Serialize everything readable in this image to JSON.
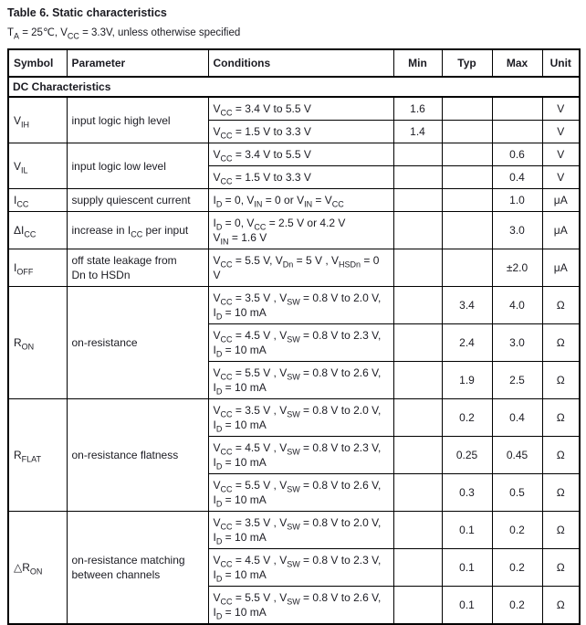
{
  "page": {
    "title": "Table 6. Static characteristics",
    "subtitle": "T~A~ = 25℃, V~CC~ = 3.3V, unless otherwise specified"
  },
  "table": {
    "headers": [
      "Symbol",
      "Parameter",
      "Conditions",
      "Min",
      "Typ",
      "Max",
      "Unit"
    ],
    "section_label": "DC Characteristics",
    "groups": [
      {
        "symbol": "V~IH~",
        "parameter": "input logic high level",
        "rows": [
          {
            "conditions": "V~CC~ = 3.4 V to 5.5 V",
            "min": "1.6",
            "typ": "",
            "max": "",
            "unit": "V"
          },
          {
            "conditions": "V~CC~ = 1.5 V to 3.3 V",
            "min": "1.4",
            "typ": "",
            "max": "",
            "unit": "V"
          }
        ]
      },
      {
        "symbol": "V~IL~",
        "parameter": "input logic low level",
        "rows": [
          {
            "conditions": "V~CC~ = 3.4 V to 5.5 V",
            "min": "",
            "typ": "",
            "max": "0.6",
            "unit": "V"
          },
          {
            "conditions": "V~CC~ = 1.5 V to 3.3 V",
            "min": "",
            "typ": "",
            "max": "0.4",
            "unit": "V"
          }
        ]
      },
      {
        "symbol": "I~CC~",
        "parameter": "supply quiescent current",
        "rows": [
          {
            "conditions": "I~D~ = 0, V~IN~ = 0 or V~IN~ = V~CC~",
            "min": "",
            "typ": "",
            "max": "1.0",
            "unit": "μA"
          }
        ]
      },
      {
        "symbol": "ΔI~CC~",
        "parameter": "increase in I~CC~ per input",
        "rows": [
          {
            "conditions": "I~D~ = 0, V~CC~ = 2.5 V or 4.2 V\nV~IN~ = 1.6 V",
            "min": "",
            "typ": "",
            "max": "3.0",
            "unit": "μA"
          }
        ]
      },
      {
        "symbol": "I~OFF~",
        "parameter": "off state leakage from\nDn to HSDn",
        "rows": [
          {
            "conditions": "V~CC~ = 5.5 V, V~Dn~ = 5 V , V~HSDn~ = 0 V",
            "min": "",
            "typ": "",
            "max": "±2.0",
            "unit": "μA"
          }
        ]
      },
      {
        "symbol": "R~ON~",
        "parameter": "on-resistance",
        "rows": [
          {
            "conditions": "V~CC~ = 3.5 V , V~SW~ = 0.8 V to 2.0 V,\nI~D~ = 10 mA",
            "min": "",
            "typ": "3.4",
            "max": "4.0",
            "unit": "Ω"
          },
          {
            "conditions": "V~CC~ = 4.5 V , V~SW~ = 0.8 V to 2.3 V,\nI~D~ = 10 mA",
            "min": "",
            "typ": "2.4",
            "max": "3.0",
            "unit": "Ω"
          },
          {
            "conditions": "V~CC~ = 5.5 V , V~SW~ = 0.8 V to 2.6 V,\nI~D~ = 10 mA",
            "min": "",
            "typ": "1.9",
            "max": "2.5",
            "unit": "Ω"
          }
        ]
      },
      {
        "symbol": "R~FLAT~",
        "parameter": "on-resistance flatness",
        "rows": [
          {
            "conditions": "V~CC~ = 3.5 V , V~SW~ = 0.8 V to 2.0 V,\nI~D~ = 10 mA",
            "min": "",
            "typ": "0.2",
            "max": "0.4",
            "unit": "Ω"
          },
          {
            "conditions": "V~CC~ = 4.5 V , V~SW~ = 0.8 V to 2.3 V,\nI~D~ = 10 mA",
            "min": "",
            "typ": "0.25",
            "max": "0.45",
            "unit": "Ω"
          },
          {
            "conditions": "V~CC~ = 5.5 V , V~SW~ = 0.8 V to 2.6 V,\nI~D~ = 10 mA",
            "min": "",
            "typ": "0.3",
            "max": "0.5",
            "unit": "Ω"
          }
        ]
      },
      {
        "symbol": "△R~ON~",
        "parameter": "on-resistance matching\nbetween channels",
        "rows": [
          {
            "conditions": "V~CC~ = 3.5 V , V~SW~ = 0.8 V to 2.0 V,\nI~D~ = 10 mA",
            "min": "",
            "typ": "0.1",
            "max": "0.2",
            "unit": "Ω"
          },
          {
            "conditions": "V~CC~ = 4.5 V , V~SW~ = 0.8 V to 2.3 V,\nI~D~ = 10 mA",
            "min": "",
            "typ": "0.1",
            "max": "0.2",
            "unit": "Ω"
          },
          {
            "conditions": "V~CC~ = 5.5 V , V~SW~ = 0.8 V to 2.6 V,\nI~D~ = 10 mA",
            "min": "",
            "typ": "0.1",
            "max": "0.2",
            "unit": "Ω"
          }
        ]
      }
    ]
  }
}
